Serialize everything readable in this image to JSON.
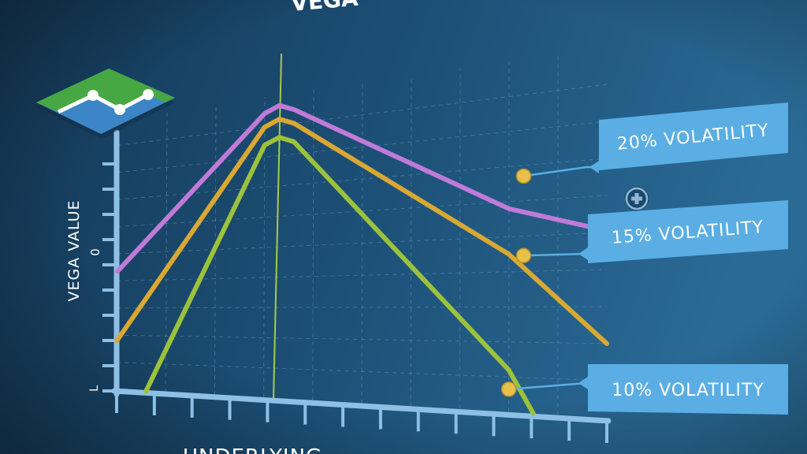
{
  "colors": {
    "background_left": "#163c5c",
    "background_right": "#24628c",
    "grid": "#6f9cc0",
    "axis": "#8ec0e6",
    "peak_line": "#a7c94a",
    "label_box": "#5aaee4",
    "marker": "#e7c04a",
    "logo_green": "#47a843",
    "logo_blue": "#3c86c8"
  },
  "chart_data": {
    "type": "line",
    "title": "VEGA",
    "xlabel": "UNDERLYING",
    "ylabel": "VEGA VALUE",
    "y_tick_labels": {
      "middle": "0",
      "bottom": "L"
    },
    "x_range": [
      0,
      10
    ],
    "y_range": [
      0,
      10
    ],
    "grid": true,
    "vertical_reference_x": 3.2,
    "series": [
      {
        "name": "20% VOLATILITY",
        "color": "#c07ad8",
        "label_position": "right",
        "points": [
          [
            0,
            4.35
          ],
          [
            3.0,
            9.45
          ],
          [
            3.3,
            9.65
          ],
          [
            3.6,
            9.45
          ],
          [
            8.0,
            5.8
          ],
          [
            10.0,
            5.05
          ]
        ],
        "marker": [
          8.3,
          6.7
        ]
      },
      {
        "name": "15% VOLATILITY",
        "color": "#d9a833",
        "label_position": "right",
        "points": [
          [
            0,
            1.8
          ],
          [
            3.0,
            9.0
          ],
          [
            3.3,
            9.2
          ],
          [
            3.6,
            9.0
          ],
          [
            8.0,
            4.5
          ],
          [
            10.0,
            2.0
          ]
        ],
        "marker": [
          8.3,
          4.45
        ]
      },
      {
        "name": "10% VOLATILITY",
        "color": "#9cc23c",
        "label_position": "right",
        "points": [
          [
            0.6,
            0.0
          ],
          [
            3.0,
            8.4
          ],
          [
            3.3,
            8.6
          ],
          [
            3.6,
            8.4
          ],
          [
            8.0,
            1.2
          ],
          [
            8.5,
            0.0
          ]
        ],
        "marker": [
          8.0,
          0.65
        ]
      }
    ]
  }
}
